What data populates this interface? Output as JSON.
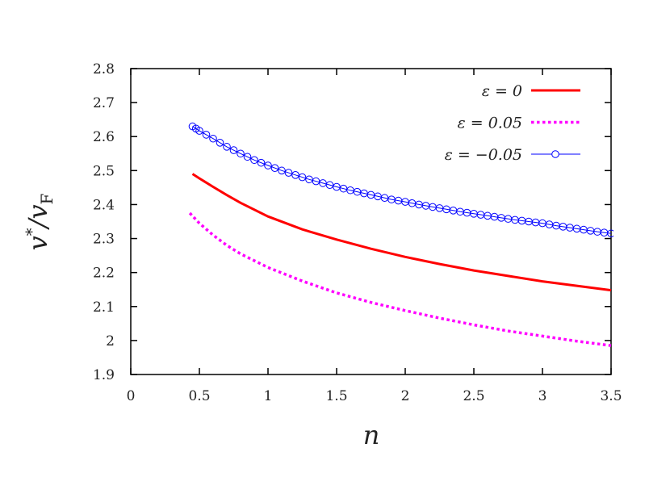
{
  "chart_data": {
    "type": "line",
    "title": "",
    "xlabel": "n",
    "ylabel": "v*/v_F",
    "ylabel_parts": {
      "main": "v",
      "sup": "*",
      "slash": "/v",
      "sub": "F"
    },
    "xlim": [
      0,
      3.5
    ],
    "ylim": [
      1.9,
      2.8
    ],
    "xticks": [
      "0",
      "0.5",
      "1",
      "1.5",
      "2",
      "2.5",
      "3",
      "3.5"
    ],
    "yticks": [
      "1.9",
      "2",
      "2.1",
      "2.2",
      "2.3",
      "2.4",
      "2.5",
      "2.6",
      "2.7",
      "2.8"
    ],
    "grid": false,
    "legend_position": "top-right",
    "series": [
      {
        "name": "ε = 0",
        "color": "#ff0000",
        "style": "solid",
        "x": [
          0.45,
          0.5,
          0.6,
          0.7,
          0.8,
          1.0,
          1.25,
          1.5,
          1.75,
          2.0,
          2.25,
          2.5,
          2.75,
          3.0,
          3.25,
          3.5
        ],
        "y": [
          2.49,
          2.477,
          2.452,
          2.428,
          2.405,
          2.365,
          2.327,
          2.297,
          2.27,
          2.246,
          2.225,
          2.206,
          2.19,
          2.174,
          2.161,
          2.148
        ]
      },
      {
        "name": "ε = 0.05",
        "color": "#ff00ff",
        "style": "dotted",
        "x": [
          0.43,
          0.5,
          0.6,
          0.7,
          0.8,
          1.0,
          1.25,
          1.5,
          1.75,
          2.0,
          2.25,
          2.5,
          2.75,
          3.0,
          3.25,
          3.5
        ],
        "y": [
          2.375,
          2.345,
          2.31,
          2.28,
          2.255,
          2.215,
          2.175,
          2.14,
          2.112,
          2.088,
          2.066,
          2.046,
          2.028,
          2.013,
          1.998,
          1.985
        ]
      },
      {
        "name": "ε = −0.05",
        "color": "#0000ff",
        "style": "line-circles",
        "x": [
          0.45,
          0.5,
          0.6,
          0.7,
          0.8,
          0.9,
          1.0,
          1.1,
          1.2,
          1.3,
          1.4,
          1.5,
          1.6,
          1.7,
          1.8,
          1.9,
          2.0,
          2.1,
          2.2,
          2.3,
          2.4,
          2.5,
          2.6,
          2.7,
          2.8,
          2.9,
          3.0,
          3.1,
          3.2,
          3.3,
          3.4,
          3.5
        ],
        "y": [
          2.63,
          2.617,
          2.594,
          2.57,
          2.55,
          2.531,
          2.515,
          2.5,
          2.487,
          2.474,
          2.463,
          2.452,
          2.442,
          2.433,
          2.424,
          2.415,
          2.408,
          2.4,
          2.393,
          2.386,
          2.379,
          2.373,
          2.367,
          2.361,
          2.355,
          2.35,
          2.345,
          2.338,
          2.332,
          2.326,
          2.32,
          2.315
        ]
      }
    ]
  }
}
